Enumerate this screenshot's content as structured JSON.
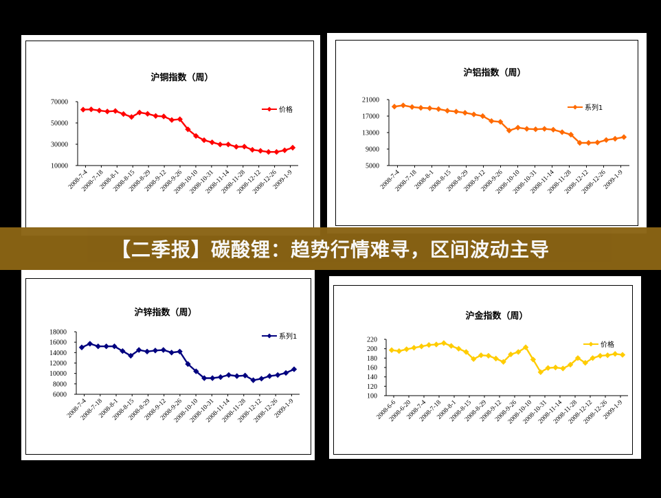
{
  "banner": {
    "title": "【二季报】碳酸锂：趋势行情难寻，区间波动主导"
  },
  "chart_data": [
    {
      "type": "line",
      "title": "沪铜指数（周）",
      "legend_position": "top-right",
      "color": "#ff0000",
      "ylim": [
        10000,
        70000
      ],
      "yticks": [
        "70000",
        "50000",
        "30000",
        "10000"
      ],
      "xticklabels": [
        "2008-7-4",
        "2008-7-18",
        "2008-8-1",
        "2008-8-15",
        "2008-8-29",
        "2008-9-12",
        "2008-9-26",
        "2008-10-10",
        "2008-10-31",
        "2008-11-14",
        "2008-11-28",
        "2008-12-12",
        "2008-12-26",
        "2009-1-9"
      ],
      "series": [
        {
          "name": "价格",
          "values": [
            62500,
            62800,
            61700,
            60800,
            61200,
            58400,
            55600,
            59800,
            58600,
            56600,
            56100,
            52800,
            53500,
            44000,
            37800,
            33800,
            31800,
            29800,
            29800,
            27600,
            27800,
            24800,
            23800,
            22800,
            22800,
            24300,
            26800
          ]
        }
      ]
    },
    {
      "type": "line",
      "title": "沪铝指数（周）",
      "legend_position": "top-right",
      "color": "#ff6a00",
      "ylim": [
        5000,
        21000
      ],
      "yticks": [
        "21000",
        "17000",
        "13000",
        "9000",
        "5000"
      ],
      "xticklabels": [
        "2008-7-4",
        "2008-7-18",
        "2008-8-1",
        "2008-8-15",
        "2008-8-29",
        "2008-9-12",
        "2008-9-26",
        "2008-10-10",
        "2008-10-31",
        "2008-11-14",
        "2008-11-28",
        "2008-12-12",
        "2008-12-26",
        "2009-1-9"
      ],
      "series": [
        {
          "name": "系列1",
          "values": [
            19300,
            19600,
            19200,
            19000,
            18900,
            18700,
            18300,
            18100,
            17800,
            17400,
            17000,
            15800,
            15600,
            13500,
            14200,
            13900,
            13800,
            13900,
            13700,
            13100,
            12500,
            10500,
            10500,
            10600,
            11200,
            11500,
            11900
          ]
        }
      ]
    },
    {
      "type": "line",
      "title": "沪锌指数（周）",
      "legend_position": "top-right",
      "color": "#00007f",
      "ylim": [
        6000,
        18000
      ],
      "yticks": [
        "18000",
        "16000",
        "14000",
        "12000",
        "10000",
        "8000",
        "6000"
      ],
      "xticklabels": [
        "2008-7-4",
        "2008-7-18",
        "2008-8-1",
        "2008-8-15",
        "2008-8-29",
        "2008-9-12",
        "2008-9-26",
        "2008-10-10",
        "2008-10-31",
        "2008-11-14",
        "2008-11-28",
        "2008-12-12",
        "2008-12-26",
        "2009-1-9"
      ],
      "series": [
        {
          "name": "系列1",
          "values": [
            15000,
            15700,
            15200,
            15200,
            15200,
            14300,
            13400,
            14500,
            14200,
            14400,
            14500,
            14000,
            14200,
            11800,
            10400,
            9100,
            9100,
            9300,
            9700,
            9500,
            9600,
            8700,
            9000,
            9500,
            9700,
            10100,
            10800
          ]
        }
      ]
    },
    {
      "type": "line",
      "title": "沪金指数（周）",
      "legend_position": "top-right",
      "color": "#ffcc00",
      "ylim": [
        100,
        220
      ],
      "yticks": [
        "220",
        "200",
        "180",
        "160",
        "140",
        "120",
        "100"
      ],
      "xticklabels": [
        "2008-6-6",
        "2008-6-20",
        "2008-7-4",
        "2008-7-18",
        "2008-8-1",
        "2008-8-15",
        "2008-8-29",
        "2008-9-12",
        "2008-9-26",
        "2008-10-10",
        "2008-10-31",
        "2008-11-14",
        "2008-11-28",
        "2008-12-12",
        "2008-12-26",
        "2009-1-9"
      ],
      "series": [
        {
          "name": "价格",
          "values": [
            197,
            195,
            199,
            202,
            205,
            208,
            209,
            212,
            206,
            200,
            193,
            178,
            186,
            185,
            179,
            172,
            188,
            193,
            203,
            177,
            150,
            159,
            160,
            158,
            166,
            180,
            170,
            180,
            185,
            186,
            189,
            187
          ]
        }
      ]
    }
  ]
}
